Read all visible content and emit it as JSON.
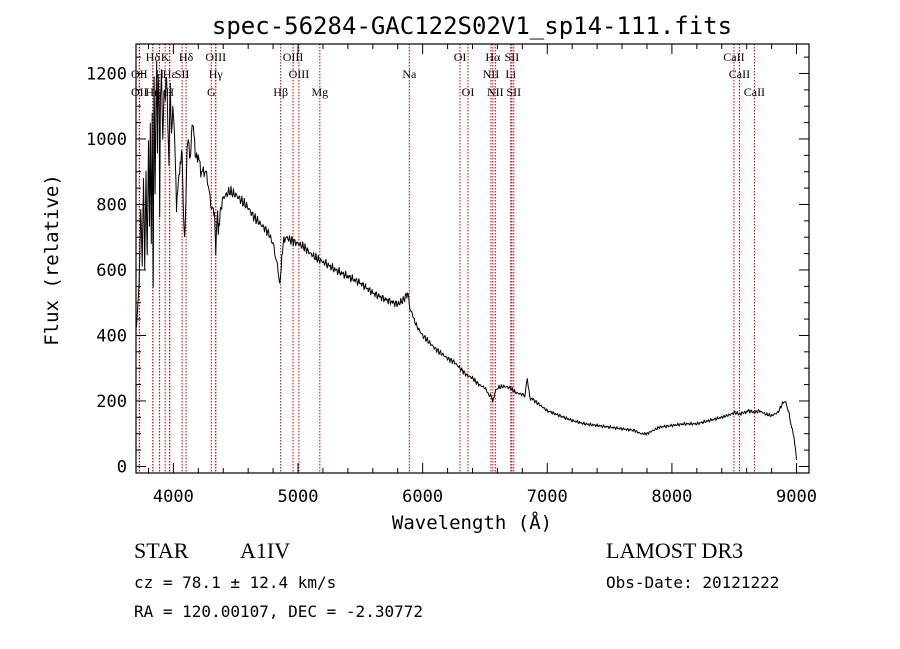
{
  "chart_data": {
    "type": "line",
    "title": "spec-56284-GAC122S02V1_sp14-111.fits",
    "xlabel": "Wavelength (Å)",
    "ylabel": "Flux (relative)",
    "xlim": [
      3700,
      9100
    ],
    "ylim": [
      -20,
      1290
    ],
    "xticks": [
      4000,
      5000,
      6000,
      7000,
      8000,
      9000
    ],
    "yticks": [
      0,
      200,
      400,
      600,
      800,
      1000,
      1200
    ],
    "xtick_labels": [
      "4000",
      "5000",
      "6000",
      "7000",
      "8000",
      "9000"
    ],
    "ytick_labels": [
      "0",
      "200",
      "400",
      "600",
      "800",
      "1000",
      "1200"
    ],
    "series": [
      {
        "name": "spectrum",
        "x": [
          3700,
          3712,
          3725,
          3738,
          3750,
          3760,
          3770,
          3780,
          3790,
          3800,
          3808,
          3815,
          3823,
          3830,
          3838,
          3845,
          3853,
          3860,
          3866,
          3872,
          3878,
          3885,
          3890,
          3896,
          3905,
          3915,
          3925,
          3935,
          3945,
          3955,
          3965,
          3970,
          3975,
          3985,
          3995,
          4005,
          4015,
          4025,
          4040,
          4055,
          4070,
          4080,
          4090,
          4100,
          4105,
          4110,
          4120,
          4135,
          4150,
          4165,
          4180,
          4200,
          4220,
          4240,
          4260,
          4280,
          4300,
          4320,
          4330,
          4335,
          4340,
          4345,
          4350,
          4355,
          4360,
          4370,
          4380,
          4400,
          4450,
          4500,
          4550,
          4600,
          4650,
          4700,
          4750,
          4780,
          4800,
          4820,
          4840,
          4850,
          4855,
          4861,
          4870,
          4880,
          4900,
          4950,
          5000,
          5050,
          5100,
          5150,
          5200,
          5300,
          5400,
          5500,
          5600,
          5700,
          5800,
          5850,
          5880,
          5900,
          5920,
          5950,
          6000,
          6050,
          6100,
          6150,
          6200,
          6250,
          6300,
          6350,
          6400,
          6450,
          6500,
          6530,
          6550,
          6563,
          6580,
          6600,
          6650,
          6700,
          6750,
          6800,
          6820,
          6840,
          6860,
          6900,
          6950,
          7000,
          7100,
          7200,
          7300,
          7400,
          7500,
          7600,
          7700,
          7750,
          7800,
          7850,
          7900,
          8000,
          8100,
          8200,
          8300,
          8400,
          8480,
          8500,
          8542,
          8580,
          8620,
          8662,
          8700,
          8750,
          8800,
          8850,
          8900,
          8920,
          8940,
          8960,
          8980,
          9000
        ],
        "values": [
          420,
          470,
          560,
          780,
          620,
          880,
          600,
          900,
          640,
          980,
          720,
          1040,
          680,
          1100,
          560,
          1180,
          820,
          1080,
          1240,
          960,
          1190,
          1100,
          760,
          1120,
          1200,
          1000,
          1150,
          1120,
          1200,
          1060,
          920,
          1080,
          1150,
          1000,
          1100,
          1060,
          940,
          780,
          880,
          920,
          960,
          780,
          700,
          800,
          900,
          960,
          1000,
          940,
          1040,
          1020,
          940,
          950,
          900,
          900,
          900,
          860,
          800,
          780,
          760,
          720,
          640,
          720,
          760,
          780,
          720,
          740,
          790,
          820,
          840,
          830,
          810,
          790,
          760,
          740,
          720,
          700,
          680,
          640,
          600,
          560,
          560,
          580,
          640,
          680,
          700,
          690,
          680,
          670,
          650,
          635,
          625,
          600,
          580,
          560,
          530,
          510,
          495,
          510,
          530,
          480,
          460,
          430,
          400,
          380,
          360,
          345,
          330,
          320,
          300,
          280,
          270,
          250,
          240,
          220,
          215,
          200,
          225,
          240,
          245,
          240,
          225,
          220,
          215,
          270,
          210,
          200,
          185,
          170,
          155,
          140,
          130,
          125,
          120,
          115,
          110,
          100,
          100,
          110,
          120,
          125,
          130,
          130,
          140,
          150,
          160,
          165,
          160,
          165,
          170,
          165,
          170,
          160,
          155,
          165,
          200,
          190,
          160,
          120,
          90,
          20
        ]
      }
    ],
    "lines": [
      {
        "label": "Hδ",
        "x": 3835,
        "row": 0
      },
      {
        "label": "K",
        "x": 3934,
        "row": 0
      },
      {
        "label": "Hδ",
        "x": 4102,
        "row": 0
      },
      {
        "label": "OIII",
        "x": 4340,
        "row": 0
      },
      {
        "label": "OIII",
        "x": 4960,
        "row": 0
      },
      {
        "label": "OI",
        "x": 6300,
        "row": 0
      },
      {
        "label": "Hα",
        "x": 6563,
        "row": 0
      },
      {
        "label": "SII",
        "x": 6716,
        "row": 0
      },
      {
        "label": "CaII",
        "x": 8498,
        "row": 0
      },
      {
        "label": "OII",
        "x": 3727,
        "row": 1
      },
      {
        "label": "H",
        "x": 3889,
        "row": 1
      },
      {
        "label": "Hε",
        "x": 3970,
        "row": 1
      },
      {
        "label": "SII",
        "x": 4070,
        "row": 1
      },
      {
        "label": "Hγ",
        "x": 4340,
        "row": 1
      },
      {
        "label": "OIII",
        "x": 5007,
        "row": 1
      },
      {
        "label": "Na",
        "x": 5893,
        "row": 1
      },
      {
        "label": "NII",
        "x": 6548,
        "row": 1
      },
      {
        "label": "Li",
        "x": 6707,
        "row": 1
      },
      {
        "label": "CaII",
        "x": 8542,
        "row": 1
      },
      {
        "label": "OII",
        "x": 3727,
        "row": 2
      },
      {
        "label": "Hη",
        "x": 3835,
        "row": 2
      },
      {
        "label": "H",
        "x": 3970,
        "row": 2
      },
      {
        "label": "G",
        "x": 4304,
        "row": 2
      },
      {
        "label": "Hβ",
        "x": 4861,
        "row": 2
      },
      {
        "label": "Mg",
        "x": 5175,
        "row": 2
      },
      {
        "label": "OI",
        "x": 6364,
        "row": 2
      },
      {
        "label": "NII",
        "x": 6583,
        "row": 2
      },
      {
        "label": "SII",
        "x": 6731,
        "row": 2
      },
      {
        "label": "CaII",
        "x": 8662,
        "row": 2
      }
    ],
    "line_colors": {
      "spectrum": "#000000",
      "markers": "#c00000"
    }
  },
  "info": {
    "class_label": "STAR",
    "subclass": "A1IV",
    "survey": "LAMOST DR3",
    "cz": "cz = 78.1 ± 12.4 km/s",
    "obs_date": "Obs-Date: 20121222",
    "coords": "RA = 120.00107, DEC =  -2.30772"
  }
}
